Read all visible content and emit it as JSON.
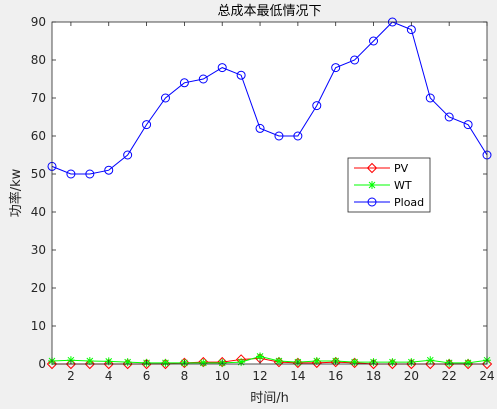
{
  "chart_data": {
    "type": "line",
    "title": "总成本最低情况下",
    "xlabel": "时间/h",
    "ylabel": "功率/kw",
    "xlim": [
      1,
      24
    ],
    "ylim": [
      0,
      90
    ],
    "xticks": [
      2,
      4,
      6,
      8,
      10,
      12,
      14,
      16,
      18,
      20,
      22,
      24
    ],
    "yticks": [
      0,
      10,
      20,
      30,
      40,
      50,
      60,
      70,
      80,
      90
    ],
    "grid": false,
    "legend_position": "right-middle",
    "x": [
      1,
      2,
      3,
      4,
      5,
      6,
      7,
      8,
      9,
      10,
      11,
      12,
      13,
      14,
      15,
      16,
      17,
      18,
      19,
      20,
      21,
      22,
      23,
      24
    ],
    "series": [
      {
        "name": "PV",
        "color": "#ff0000",
        "marker": "diamond",
        "values": [
          0,
          0,
          0,
          0,
          0,
          0,
          0,
          0.3,
          0.5,
          0.5,
          1.2,
          1.5,
          0.5,
          0.3,
          0.3,
          0.5,
          0.3,
          0,
          0,
          0,
          0,
          0,
          0,
          0
        ]
      },
      {
        "name": "WT",
        "color": "#00ff00",
        "marker": "star",
        "values": [
          0.8,
          1,
          0.8,
          0.7,
          0.5,
          0.3,
          0.3,
          0.3,
          0.3,
          0.3,
          0.5,
          2,
          0.8,
          0.5,
          0.8,
          0.8,
          0.5,
          0.5,
          0.5,
          0.5,
          1,
          0.3,
          0.3,
          1
        ]
      },
      {
        "name": "Pload",
        "color": "#0000ff",
        "marker": "circle",
        "values": [
          52,
          50,
          50,
          51,
          55,
          63,
          70,
          74,
          75,
          78,
          76,
          62,
          60,
          60,
          68,
          78,
          80,
          85,
          90,
          88,
          70,
          65,
          63,
          55
        ]
      }
    ]
  }
}
